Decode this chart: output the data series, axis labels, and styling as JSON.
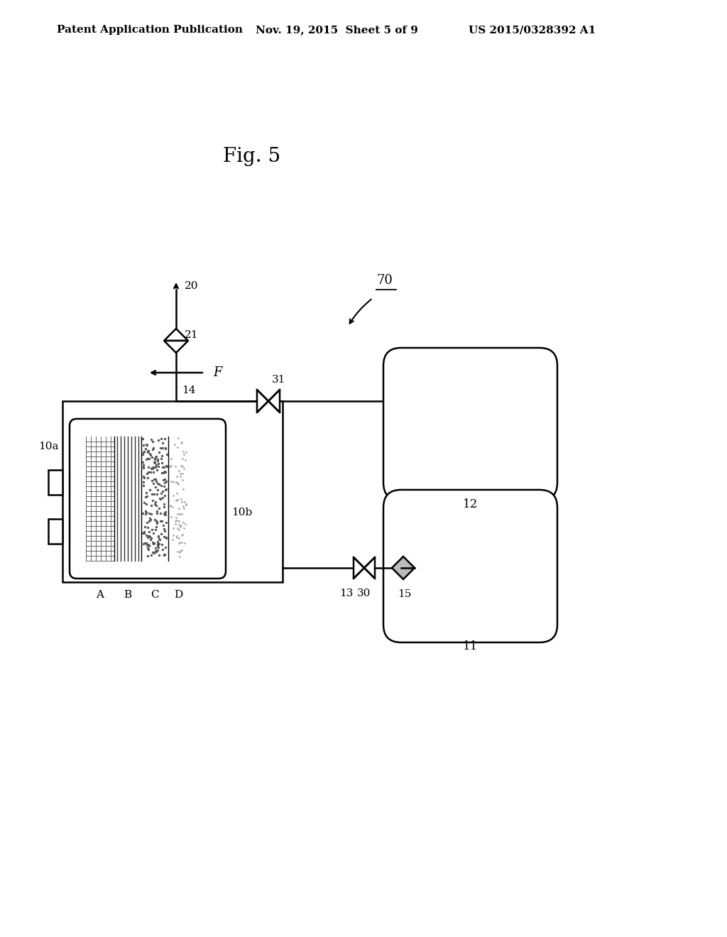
{
  "bg_color": "#ffffff",
  "header_left": "Patent Application Publication",
  "header_mid": "Nov. 19, 2015  Sheet 5 of 9",
  "header_right": "US 2015/0328392 A1",
  "fig_label": "Fig. 5",
  "label_70": "70",
  "label_20": "20",
  "label_21": "21",
  "label_14": "14",
  "label_31": "31",
  "label_F": "F",
  "label_10a": "10a",
  "label_10b": "10b",
  "label_A": "A",
  "label_B": "B",
  "label_C": "C",
  "label_D": "D",
  "label_13": "13",
  "label_30": "30",
  "label_15": "15",
  "label_12": "12",
  "label_11": "11"
}
